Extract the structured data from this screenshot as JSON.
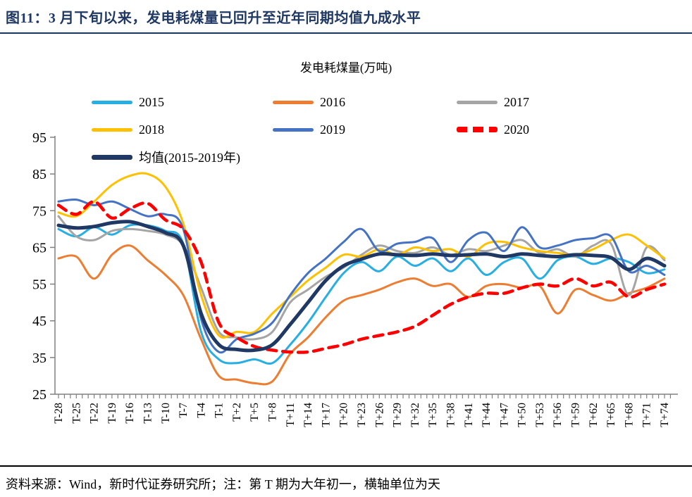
{
  "header": {
    "title": "图11：3 月下旬以来，发电耗煤量已回升至近年同期均值九成水平"
  },
  "footer": {
    "source_note": "资料来源：Wind，新时代证券研究所；注：第 T 期为大年初一，横轴单位为天"
  },
  "chart_data": {
    "type": "line",
    "title": "发电耗煤量(万吨)",
    "ylabel": "",
    "xlabel": "",
    "ylim": [
      25,
      95
    ],
    "y_ticks": [
      25,
      35,
      45,
      55,
      65,
      75,
      85,
      95
    ],
    "grid": false,
    "legend_position": "top",
    "axis_color": "#808080",
    "x_labels": [
      "T-28",
      "T-25",
      "T-22",
      "T-19",
      "T-16",
      "T-13",
      "T-10",
      "T-7",
      "T-4",
      "T-1",
      "T+2",
      "T+5",
      "T+8",
      "T+11",
      "T+14",
      "T+17",
      "T+20",
      "T+23",
      "T+26",
      "T+29",
      "T+32",
      "T+35",
      "T+38",
      "T+41",
      "T+44",
      "T+47",
      "T+50",
      "T+53",
      "T+56",
      "T+59",
      "T+62",
      "T+65",
      "T+68",
      "T+71",
      "T+74"
    ],
    "x_step_days": 3,
    "series": [
      {
        "name": "2015",
        "color": "#27AEE3",
        "style": "solid",
        "width": 3,
        "values": [
          70,
          68,
          70.5,
          68.5,
          71,
          71,
          69.5,
          66,
          42,
          34.5,
          33.5,
          34.5,
          33.5,
          38.5,
          44.5,
          51.5,
          58,
          61,
          58.5,
          62.5,
          60,
          62,
          58.5,
          62,
          57.5,
          61,
          62,
          56.5,
          61.5,
          62.5,
          60.5,
          62,
          61,
          58,
          59
        ]
      },
      {
        "name": "2016",
        "color": "#ED7D31",
        "style": "solid",
        "width": 3,
        "values": [
          62,
          62.5,
          56.5,
          63,
          65.5,
          61.5,
          57.5,
          52,
          40,
          30,
          29,
          28,
          28.5,
          36,
          40.5,
          46,
          50.5,
          52,
          53.5,
          55.5,
          56.5,
          54.5,
          55,
          51.5,
          54.5,
          55,
          54,
          54.5,
          47,
          53.5,
          52,
          50.5,
          52.5,
          54,
          56.5
        ]
      },
      {
        "name": "2017",
        "color": "#A5A5A5",
        "style": "solid",
        "width": 3,
        "values": [
          73.5,
          68,
          67,
          69.5,
          70,
          69.5,
          68.5,
          65.5,
          54,
          42,
          40.5,
          40,
          42,
          50,
          53.5,
          57,
          59.5,
          63,
          65.5,
          64,
          63.5,
          65,
          63,
          64.5,
          64,
          65.5,
          67,
          63.5,
          64.5,
          62.5,
          65.5,
          66,
          52,
          65,
          61.5
        ]
      },
      {
        "name": "2018",
        "color": "#FFC000",
        "style": "solid",
        "width": 3,
        "values": [
          74.5,
          73.5,
          77.5,
          82,
          84.5,
          85,
          81.5,
          71.5,
          52,
          41,
          42,
          42,
          47,
          51.5,
          56,
          59.5,
          63,
          62.5,
          64.5,
          63,
          65,
          64,
          64.5,
          62.5,
          66,
          66.5,
          65,
          64,
          63.5,
          63,
          64.5,
          67,
          68.5,
          65.5,
          62
        ]
      },
      {
        "name": "2019",
        "color": "#4472C4",
        "style": "solid",
        "width": 3,
        "values": [
          77.5,
          78,
          76.5,
          77.5,
          75.5,
          73.5,
          74,
          70,
          45.5,
          36.5,
          40,
          41.5,
          44.5,
          52,
          58,
          62,
          66.5,
          70,
          64,
          66,
          66.5,
          67.5,
          61,
          67,
          69,
          64,
          70.5,
          65,
          65.5,
          67,
          67.5,
          68,
          58.5,
          60,
          57.5
        ]
      },
      {
        "name": "2020",
        "color": "#FF0000",
        "style": "dashed",
        "width": 4.5,
        "values": [
          76.5,
          74,
          77.5,
          73,
          75.5,
          77,
          72.5,
          70,
          61,
          44.5,
          40.5,
          38,
          37,
          36.5,
          36.5,
          37.5,
          38.5,
          40,
          41,
          42,
          43.5,
          46.5,
          49.5,
          51.5,
          52.5,
          52.5,
          54,
          55,
          54.5,
          56.5,
          54.5,
          55.5,
          51.5,
          53.5,
          55
        ]
      },
      {
        "name": "均值(2015-2019年)",
        "color": "#1F3864",
        "style": "solid",
        "width": 5,
        "values": [
          71,
          70.3,
          70.7,
          71.7,
          72,
          70.7,
          69,
          65.5,
          47,
          38.5,
          37.2,
          37,
          38.5,
          44,
          50,
          56,
          60,
          61.8,
          63.2,
          63,
          62.8,
          63.2,
          62.8,
          63,
          63.2,
          62.5,
          63.2,
          62.8,
          62.5,
          63,
          62.8,
          62.2,
          59,
          62,
          60
        ]
      }
    ],
    "legend_layout": {
      "rows": [
        [
          "2015",
          "2016",
          "2017"
        ],
        [
          "2018",
          "2019",
          "2020"
        ],
        [
          "均值(2015-2019年)"
        ]
      ],
      "row_tops": [
        136,
        175,
        214
      ],
      "col_lefts": [
        130,
        387,
        648
      ]
    }
  }
}
